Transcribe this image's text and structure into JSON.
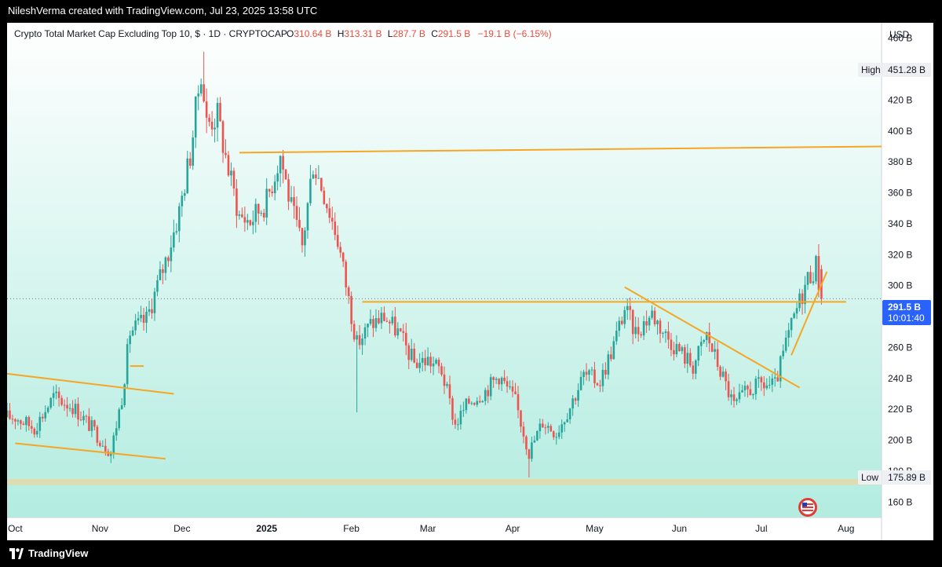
{
  "header": {
    "credit": "NileshVerma created with TradingView.com, Jul 23, 2025 13:58 UTC"
  },
  "legend": {
    "symbol": "Crypto Total Market Cap Excluding Top 10, $ · 1D · CRYPTOCAP",
    "o_label": "O",
    "o_val": "310.64 B",
    "h_label": "H",
    "h_val": "313.31 B",
    "l_label": "L",
    "l_val": "287.7 B",
    "c_label": "C",
    "c_val": "291.5 B",
    "change": "−19.1 B (−6.15%)"
  },
  "price_axis": {
    "currency": "USD",
    "ticks": [
      "460 B",
      "440 B",
      "420 B",
      "400 B",
      "380 B",
      "360 B",
      "340 B",
      "320 B",
      "300 B",
      "280 B",
      "260 B",
      "240 B",
      "220 B",
      "200 B",
      "180 B",
      "160 B"
    ],
    "high_label": "High",
    "high_value": "451.28 B",
    "low_label": "Low",
    "low_value": "175.89 B",
    "last_price": "291.5 B",
    "countdown": "10:01:40"
  },
  "time_axis": {
    "labels": [
      "Oct",
      "Nov",
      "Dec",
      "2025",
      "Feb",
      "Mar",
      "Apr",
      "May",
      "Jun",
      "Jul",
      "Aug"
    ]
  },
  "footer": {
    "brand": "TradingView"
  },
  "colors": {
    "up": "#26a69a",
    "down": "#ef5350",
    "line": "#f5a623",
    "bg_top": "#ffffff",
    "bg_bottom": "#b2ebe0",
    "last": "#2962ff"
  },
  "chart_data": {
    "type": "candlestick",
    "title": "Crypto Total Market Cap Excluding Top 10, $ · 1D · CRYPTOCAP",
    "ylabel": "USD",
    "ylim": [
      150,
      470
    ],
    "x_range": [
      "2024-09-28",
      "2025-08-14"
    ],
    "close_series": [
      [
        "2024-10-01",
        215
      ],
      [
        "2024-10-08",
        208
      ],
      [
        "2024-10-15",
        228
      ],
      [
        "2024-10-22",
        222
      ],
      [
        "2024-10-29",
        208
      ],
      [
        "2024-11-05",
        192
      ],
      [
        "2024-11-09",
        228
      ],
      [
        "2024-11-12",
        270
      ],
      [
        "2024-11-18",
        278
      ],
      [
        "2024-11-22",
        300
      ],
      [
        "2024-11-26",
        322
      ],
      [
        "2024-11-30",
        348
      ],
      [
        "2024-12-04",
        385
      ],
      [
        "2024-12-08",
        440
      ],
      [
        "2024-12-10",
        405
      ],
      [
        "2024-12-14",
        410
      ],
      [
        "2024-12-18",
        375
      ],
      [
        "2024-12-22",
        345
      ],
      [
        "2024-12-26",
        342
      ],
      [
        "2025-01-01",
        355
      ],
      [
        "2025-01-06",
        385
      ],
      [
        "2025-01-10",
        350
      ],
      [
        "2025-01-14",
        325
      ],
      [
        "2025-01-18",
        380
      ],
      [
        "2025-01-22",
        360
      ],
      [
        "2025-01-27",
        330
      ],
      [
        "2025-02-03",
        262
      ],
      [
        "2025-02-08",
        275
      ],
      [
        "2025-02-13",
        280
      ],
      [
        "2025-02-18",
        270
      ],
      [
        "2025-02-24",
        250
      ],
      [
        "2025-03-01",
        252
      ],
      [
        "2025-03-06",
        245
      ],
      [
        "2025-03-11",
        210
      ],
      [
        "2025-03-16",
        225
      ],
      [
        "2025-03-22",
        232
      ],
      [
        "2025-03-27",
        242
      ],
      [
        "2025-04-02",
        225
      ],
      [
        "2025-04-07",
        192
      ],
      [
        "2025-04-12",
        212
      ],
      [
        "2025-04-17",
        205
      ],
      [
        "2025-04-22",
        222
      ],
      [
        "2025-04-27",
        242
      ],
      [
        "2025-05-03",
        238
      ],
      [
        "2025-05-08",
        262
      ],
      [
        "2025-05-12",
        285
      ],
      [
        "2025-05-16",
        270
      ],
      [
        "2025-05-22",
        282
      ],
      [
        "2025-05-27",
        268
      ],
      [
        "2025-06-01",
        258
      ],
      [
        "2025-06-06",
        248
      ],
      [
        "2025-06-11",
        268
      ],
      [
        "2025-06-16",
        245
      ],
      [
        "2025-06-21",
        222
      ],
      [
        "2025-06-26",
        232
      ],
      [
        "2025-07-01",
        236
      ],
      [
        "2025-07-06",
        235
      ],
      [
        "2025-07-10",
        262
      ],
      [
        "2025-07-14",
        285
      ],
      [
        "2025-07-18",
        305
      ],
      [
        "2025-07-21",
        313
      ],
      [
        "2025-07-23",
        291.5
      ]
    ],
    "extremes": {
      "high": 451.28,
      "low": 175.89
    },
    "last": {
      "open": 310.64,
      "high": 313.31,
      "low": 287.7,
      "close": 291.5,
      "change": -19.1,
      "change_pct": -6.15
    },
    "trendlines": [
      {
        "from": [
          "2024-09-28",
          243
        ],
        "to": [
          "2024-11-28",
          230
        ]
      },
      {
        "from": [
          "2024-10-01",
          198
        ],
        "to": [
          "2024-11-25",
          188
        ]
      },
      {
        "from": [
          "2024-11-12",
          248
        ],
        "to": [
          "2024-11-17",
          248
        ]
      },
      {
        "from": [
          "2024-12-22",
          386
        ],
        "to": [
          "2025-08-14",
          390
        ]
      },
      {
        "from": [
          "2025-02-05",
          289.5
        ],
        "to": [
          "2025-08-01",
          289.5
        ]
      },
      {
        "from": [
          "2025-05-12",
          299
        ],
        "to": [
          "2025-07-15",
          234
        ]
      },
      {
        "from": [
          "2025-07-12",
          255
        ],
        "to": [
          "2025-07-25",
          309
        ]
      }
    ],
    "zone": {
      "from": 171,
      "to": 175
    }
  }
}
